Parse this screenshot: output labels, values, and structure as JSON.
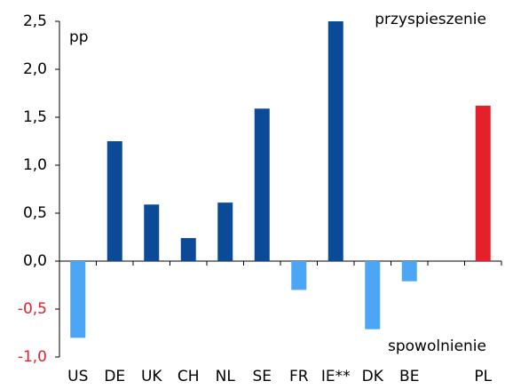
{
  "chart_data": {
    "type": "bar",
    "y_label": "pp",
    "annotations": [
      "przyspieszenie",
      "spowolnienie"
    ],
    "categories": [
      "US",
      "DE",
      "UK",
      "CH",
      "NL",
      "SE",
      "FR",
      "IE**",
      "DK",
      "BE",
      null,
      "PL"
    ],
    "values": [
      -0.8,
      1.25,
      0.59,
      0.24,
      0.61,
      1.59,
      -0.3,
      2.5,
      -0.71,
      -0.21,
      null,
      1.62
    ],
    "colors": [
      "#4da6f5",
      "#0a4a96",
      "#0a4a96",
      "#0a4a96",
      "#0a4a96",
      "#0a4a96",
      "#4da6f5",
      "#0a4a96",
      "#4da6f5",
      "#4da6f5",
      null,
      "#e3202b"
    ],
    "ylim": [
      -1.0,
      2.5
    ],
    "yticks": [
      {
        "value": -1.0,
        "label": "-1,0"
      },
      {
        "value": -0.5,
        "label": "-0,5"
      },
      {
        "value": 0.0,
        "label": "0,0"
      },
      {
        "value": 0.5,
        "label": "0,5"
      },
      {
        "value": 1.0,
        "label": "1,0"
      },
      {
        "value": 1.5,
        "label": "1,5"
      },
      {
        "value": 2.0,
        "label": "2,0"
      },
      {
        "value": 2.5,
        "label": "2,5"
      }
    ],
    "grid": false
  }
}
